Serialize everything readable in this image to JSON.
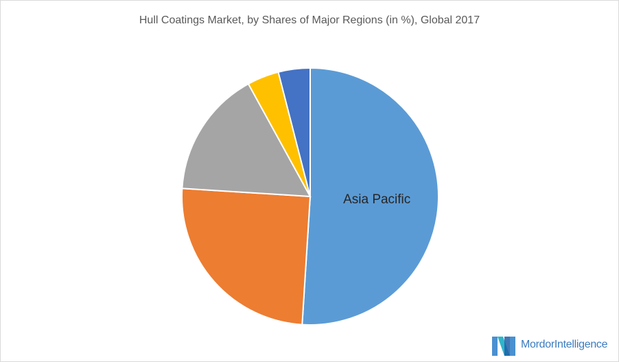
{
  "chart_data": {
    "type": "pie",
    "title": "Hull Coatings Market, by Shares of Major Regions (in %), Global 2017",
    "slices": [
      {
        "label": "Asia Pacific",
        "value": 51,
        "color": "#5b9bd5"
      },
      {
        "label": "",
        "value": 25,
        "color": "#ed7d31"
      },
      {
        "label": "",
        "value": 16,
        "color": "#a5a5a5"
      },
      {
        "label": "",
        "value": 4,
        "color": "#ffc000"
      },
      {
        "label": "",
        "value": 4,
        "color": "#4472c4"
      }
    ]
  },
  "branding": {
    "logo_text": "MordorIntelligence",
    "logo_colors": [
      "#4a90d0",
      "#2fb5c9",
      "#1f5fa8"
    ]
  }
}
